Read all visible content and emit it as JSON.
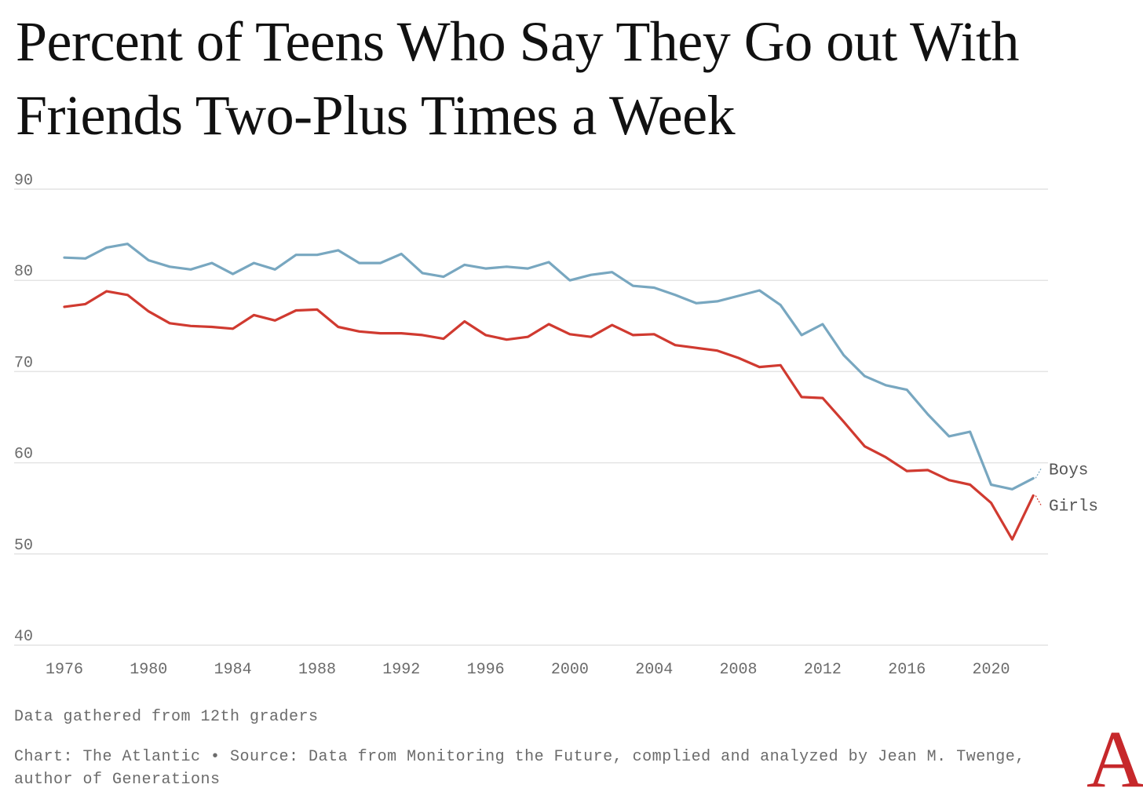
{
  "title": "Percent of Teens Who Say They Go out With Friends Two-Plus Times a Week",
  "note": "Data gathered from 12th graders",
  "source": "Chart: The Atlantic • Source: Data from Monitoring the Future, complied and analyzed by Jean M. Twenge, author of Generations",
  "logo": "A",
  "colors": {
    "boys": "#78a7c0",
    "girls": "#d03a30",
    "grid": "#e4e4e4",
    "text": "#6b6b6b"
  },
  "chart_data": {
    "type": "line",
    "x": [
      1976,
      1977,
      1978,
      1979,
      1980,
      1981,
      1982,
      1983,
      1984,
      1985,
      1986,
      1987,
      1988,
      1989,
      1990,
      1991,
      1992,
      1993,
      1994,
      1995,
      1996,
      1997,
      1998,
      1999,
      2000,
      2001,
      2002,
      2003,
      2004,
      2005,
      2006,
      2007,
      2008,
      2009,
      2010,
      2011,
      2012,
      2013,
      2014,
      2015,
      2016,
      2017,
      2018,
      2019,
      2020,
      2021,
      2022
    ],
    "xticks": [
      1976,
      1980,
      1984,
      1988,
      1992,
      1996,
      2000,
      2004,
      2008,
      2012,
      2016,
      2020
    ],
    "yticks": [
      40,
      50,
      60,
      70,
      80,
      90
    ],
    "ylim": [
      40,
      90
    ],
    "xlim": [
      1976,
      2023
    ],
    "grid": true,
    "series": [
      {
        "name": "Boys",
        "color": "#78a7c0",
        "values": [
          82.5,
          82.4,
          83.6,
          84.0,
          82.2,
          81.5,
          81.2,
          81.9,
          80.7,
          81.9,
          81.2,
          82.8,
          82.8,
          83.3,
          81.9,
          81.9,
          82.9,
          80.8,
          80.4,
          81.7,
          81.3,
          81.5,
          81.3,
          82.0,
          80.0,
          80.6,
          80.9,
          79.4,
          79.2,
          78.4,
          77.5,
          77.7,
          78.3,
          78.9,
          77.3,
          74.0,
          75.2,
          71.8,
          69.5,
          68.5,
          68.0,
          65.3,
          62.9,
          63.4,
          57.6,
          57.1,
          58.3
        ]
      },
      {
        "name": "Girls",
        "color": "#d03a30",
        "values": [
          77.1,
          77.4,
          78.8,
          78.4,
          76.6,
          75.3,
          75.0,
          74.9,
          74.7,
          76.2,
          75.6,
          76.7,
          76.8,
          74.9,
          74.4,
          74.2,
          74.2,
          74.0,
          73.6,
          75.5,
          74.0,
          73.5,
          73.8,
          75.2,
          74.1,
          73.8,
          75.1,
          74.0,
          74.1,
          72.9,
          72.6,
          72.3,
          71.5,
          70.5,
          70.7,
          67.2,
          67.1,
          64.5,
          61.8,
          60.6,
          59.1,
          59.2,
          58.1,
          57.6,
          55.6,
          51.6,
          56.4
        ]
      }
    ]
  }
}
